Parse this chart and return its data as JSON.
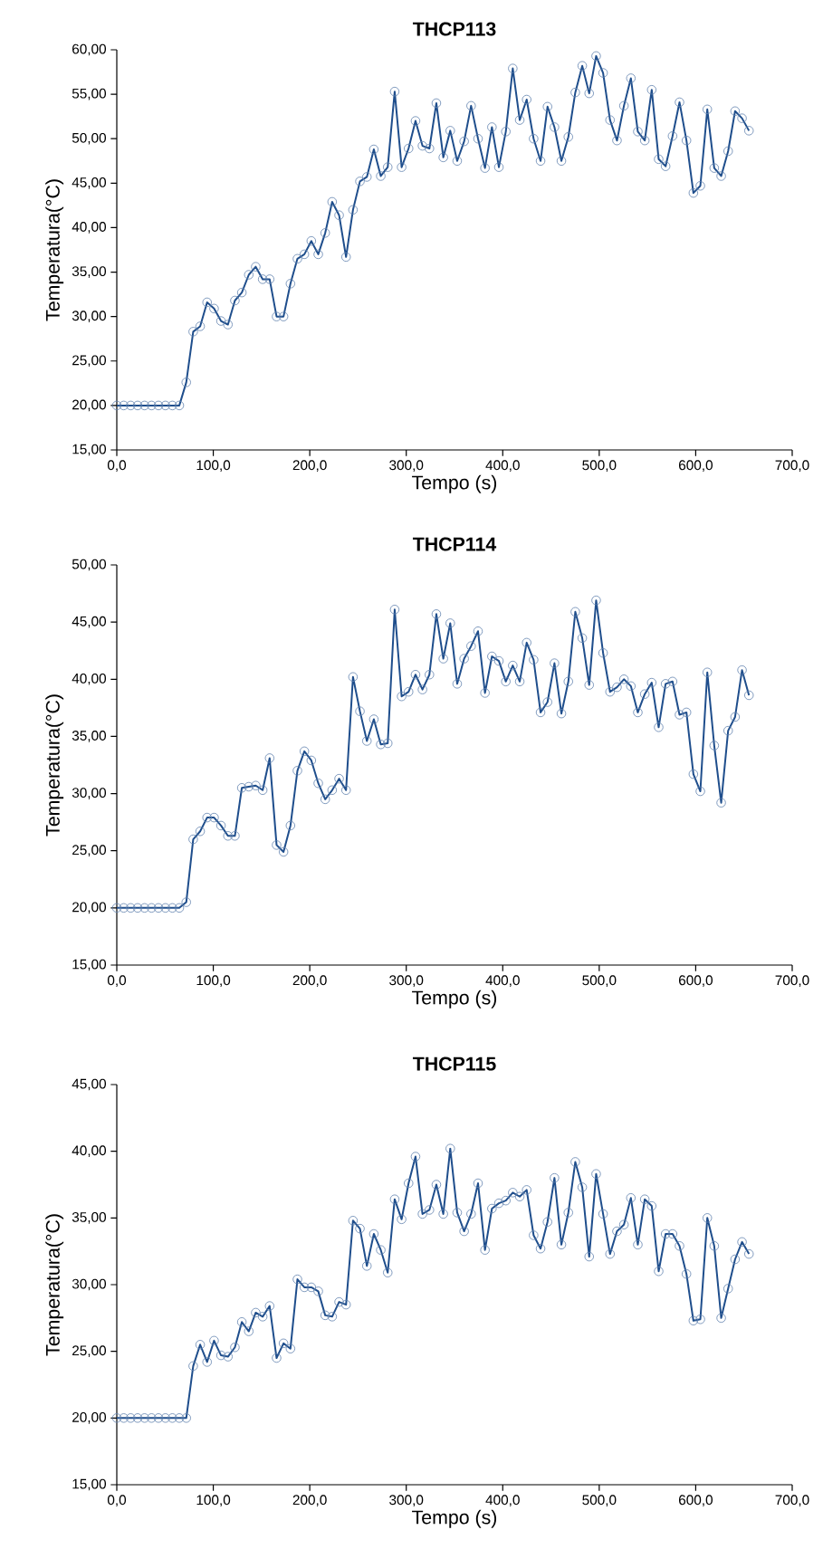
{
  "chart_data": [
    {
      "type": "line",
      "title": "THCP113",
      "xlabel": "Tempo (s)",
      "ylabel": "Temperatura(°C)",
      "grid": false,
      "marker": "circle",
      "line_style": "solid",
      "xlim": [
        0,
        700
      ],
      "ylim": [
        15,
        60
      ],
      "xticks": [
        {
          "value": 0,
          "label": "0,0"
        },
        {
          "value": 100,
          "label": "100,0"
        },
        {
          "value": 200,
          "label": "200,0"
        },
        {
          "value": 300,
          "label": "300,0"
        },
        {
          "value": 400,
          "label": "400,0"
        },
        {
          "value": 500,
          "label": "500,0"
        },
        {
          "value": 600,
          "label": "600,0"
        },
        {
          "value": 700,
          "label": "700,0"
        }
      ],
      "yticks": [
        {
          "value": 15,
          "label": "15,00"
        },
        {
          "value": 20,
          "label": "20,00"
        },
        {
          "value": 25,
          "label": "25,00"
        },
        {
          "value": 30,
          "label": "30,00"
        },
        {
          "value": 35,
          "label": "35,00"
        },
        {
          "value": 40,
          "label": "40,00"
        },
        {
          "value": 45,
          "label": "45,00"
        },
        {
          "value": 50,
          "label": "50,00"
        },
        {
          "value": 55,
          "label": "55,00"
        },
        {
          "value": 60,
          "label": "60,00"
        }
      ],
      "x": [
        0,
        7.2,
        14.4,
        21.6,
        28.8,
        36,
        43.2,
        50.4,
        57.6,
        64.8,
        72,
        79.2,
        86.4,
        93.6,
        100.8,
        108,
        115.2,
        122.4,
        129.6,
        136.8,
        144,
        151.2,
        158.4,
        165.6,
        172.8,
        180,
        187.2,
        194.4,
        201.6,
        208.8,
        216,
        223.2,
        230.4,
        237.6,
        244.8,
        252,
        259.2,
        266.4,
        273.6,
        280.8,
        288,
        295.2,
        302.4,
        309.6,
        316.8,
        324,
        331.2,
        338.4,
        345.6,
        352.8,
        360,
        367.2,
        374.4,
        381.6,
        388.8,
        396,
        403.2,
        410.4,
        417.6,
        424.8,
        432,
        439.2,
        446.4,
        453.6,
        460.8,
        468,
        475.2,
        482.4,
        489.6,
        496.8,
        504,
        511.2,
        518.4,
        525.6,
        532.8,
        540,
        547.2,
        554.4,
        561.6,
        568.8,
        576,
        583.2,
        590.4,
        597.6,
        604.8,
        612,
        619.2,
        626.4,
        633.6,
        640.8,
        648,
        655.2
      ],
      "series": [
        {
          "color": "#1f4e8c",
          "values": [
            20.0,
            20.0,
            20.0,
            20.0,
            20.0,
            20.0,
            20.0,
            20.0,
            20.0,
            20.0,
            22.6,
            28.3,
            28.9,
            31.6,
            30.9,
            29.5,
            29.1,
            31.8,
            32.7,
            34.7,
            35.6,
            34.2,
            34.2,
            30.0,
            30.0,
            33.7,
            36.5,
            37.0,
            38.5,
            37.0,
            39.4,
            42.9,
            41.4,
            36.7,
            42.0,
            45.2,
            45.7,
            48.8,
            45.8,
            46.8,
            55.3,
            46.8,
            48.9,
            52.0,
            49.2,
            48.9,
            54.0,
            47.9,
            50.9,
            47.5,
            49.7,
            53.7,
            50.0,
            46.7,
            51.3,
            46.8,
            50.8,
            57.9,
            52.1,
            54.4,
            50.0,
            47.5,
            53.6,
            51.3,
            47.5,
            50.2,
            55.2,
            58.2,
            55.1,
            59.3,
            57.4,
            52.1,
            49.8,
            53.7,
            56.8,
            50.8,
            49.8,
            55.5,
            47.7,
            46.9,
            50.3,
            54.1,
            49.8,
            43.9,
            44.7,
            53.3,
            46.7,
            45.8,
            48.6,
            53.1,
            52.3,
            50.9
          ]
        }
      ]
    },
    {
      "type": "line",
      "title": "THCP114",
      "xlabel": "Tempo (s)",
      "ylabel": "Temperatura(°C)",
      "grid": false,
      "marker": "circle",
      "line_style": "solid",
      "xlim": [
        0,
        700
      ],
      "ylim": [
        15,
        50
      ],
      "xticks": [
        {
          "value": 0,
          "label": "0,0"
        },
        {
          "value": 100,
          "label": "100,0"
        },
        {
          "value": 200,
          "label": "200,0"
        },
        {
          "value": 300,
          "label": "300,0"
        },
        {
          "value": 400,
          "label": "400,0"
        },
        {
          "value": 500,
          "label": "500,0"
        },
        {
          "value": 600,
          "label": "600,0"
        },
        {
          "value": 700,
          "label": "700,0"
        }
      ],
      "yticks": [
        {
          "value": 15,
          "label": "15,00"
        },
        {
          "value": 20,
          "label": "20,00"
        },
        {
          "value": 25,
          "label": "25,00"
        },
        {
          "value": 30,
          "label": "30,00"
        },
        {
          "value": 35,
          "label": "35,00"
        },
        {
          "value": 40,
          "label": "40,00"
        },
        {
          "value": 45,
          "label": "45,00"
        },
        {
          "value": 50,
          "label": "50,00"
        }
      ],
      "x": [
        0,
        7.2,
        14.4,
        21.6,
        28.8,
        36,
        43.2,
        50.4,
        57.6,
        64.8,
        72,
        79.2,
        86.4,
        93.6,
        100.8,
        108,
        115.2,
        122.4,
        129.6,
        136.8,
        144,
        151.2,
        158.4,
        165.6,
        172.8,
        180,
        187.2,
        194.4,
        201.6,
        208.8,
        216,
        223.2,
        230.4,
        237.6,
        244.8,
        252,
        259.2,
        266.4,
        273.6,
        280.8,
        288,
        295.2,
        302.4,
        309.6,
        316.8,
        324,
        331.2,
        338.4,
        345.6,
        352.8,
        360,
        367.2,
        374.4,
        381.6,
        388.8,
        396,
        403.2,
        410.4,
        417.6,
        424.8,
        432,
        439.2,
        446.4,
        453.6,
        460.8,
        468,
        475.2,
        482.4,
        489.6,
        496.8,
        504,
        511.2,
        518.4,
        525.6,
        532.8,
        540,
        547.2,
        554.4,
        561.6,
        568.8,
        576,
        583.2,
        590.4,
        597.6,
        604.8,
        612,
        619.2,
        626.4,
        633.6,
        640.8,
        648,
        655.2
      ],
      "series": [
        {
          "color": "#1f4e8c",
          "values": [
            20.0,
            20.0,
            20.0,
            20.0,
            20.0,
            20.0,
            20.0,
            20.0,
            20.0,
            20.0,
            20.5,
            26.0,
            26.7,
            27.9,
            27.9,
            27.2,
            26.3,
            26.3,
            30.5,
            30.6,
            30.7,
            30.3,
            33.1,
            25.5,
            24.9,
            27.2,
            32.0,
            33.7,
            32.9,
            30.9,
            29.5,
            30.3,
            31.3,
            30.3,
            40.2,
            37.2,
            34.6,
            36.5,
            34.3,
            34.4,
            46.1,
            38.5,
            38.9,
            40.4,
            39.1,
            40.4,
            45.7,
            41.8,
            44.9,
            39.6,
            41.8,
            42.9,
            44.2,
            38.8,
            42.0,
            41.6,
            39.8,
            41.2,
            39.8,
            43.2,
            41.7,
            37.1,
            38.0,
            41.4,
            37.0,
            39.8,
            45.9,
            43.6,
            39.5,
            46.9,
            42.3,
            38.9,
            39.3,
            40.0,
            39.4,
            37.1,
            38.7,
            39.7,
            35.8,
            39.6,
            39.8,
            36.9,
            37.1,
            31.7,
            30.2,
            40.6,
            34.2,
            29.2,
            35.5,
            36.7,
            40.8,
            38.6
          ]
        }
      ]
    },
    {
      "type": "line",
      "title": "THCP115",
      "xlabel": "Tempo (s)",
      "ylabel": "Temperatura(°C)",
      "grid": false,
      "marker": "circle",
      "line_style": "solid",
      "xlim": [
        0,
        700
      ],
      "ylim": [
        15,
        45
      ],
      "xticks": [
        {
          "value": 0,
          "label": "0,0"
        },
        {
          "value": 100,
          "label": "100,0"
        },
        {
          "value": 200,
          "label": "200,0"
        },
        {
          "value": 300,
          "label": "300,0"
        },
        {
          "value": 400,
          "label": "400,0"
        },
        {
          "value": 500,
          "label": "500,0"
        },
        {
          "value": 600,
          "label": "600,0"
        },
        {
          "value": 700,
          "label": "700,0"
        }
      ],
      "yticks": [
        {
          "value": 15,
          "label": "15,00"
        },
        {
          "value": 20,
          "label": "20,00"
        },
        {
          "value": 25,
          "label": "25,00"
        },
        {
          "value": 30,
          "label": "30,00"
        },
        {
          "value": 35,
          "label": "35,00"
        },
        {
          "value": 40,
          "label": "40,00"
        },
        {
          "value": 45,
          "label": "45,00"
        }
      ],
      "x": [
        0,
        7.2,
        14.4,
        21.6,
        28.8,
        36,
        43.2,
        50.4,
        57.6,
        64.8,
        72,
        79.2,
        86.4,
        93.6,
        100.8,
        108,
        115.2,
        122.4,
        129.6,
        136.8,
        144,
        151.2,
        158.4,
        165.6,
        172.8,
        180,
        187.2,
        194.4,
        201.6,
        208.8,
        216,
        223.2,
        230.4,
        237.6,
        244.8,
        252,
        259.2,
        266.4,
        273.6,
        280.8,
        288,
        295.2,
        302.4,
        309.6,
        316.8,
        324,
        331.2,
        338.4,
        345.6,
        352.8,
        360,
        367.2,
        374.4,
        381.6,
        388.8,
        396,
        403.2,
        410.4,
        417.6,
        424.8,
        432,
        439.2,
        446.4,
        453.6,
        460.8,
        468,
        475.2,
        482.4,
        489.6,
        496.8,
        504,
        511.2,
        518.4,
        525.6,
        532.8,
        540,
        547.2,
        554.4,
        561.6,
        568.8,
        576,
        583.2,
        590.4,
        597.6,
        604.8,
        612,
        619.2,
        626.4,
        633.6,
        640.8,
        648,
        655.2
      ],
      "series": [
        {
          "color": "#1f4e8c",
          "values": [
            20.0,
            20.0,
            20.0,
            20.0,
            20.0,
            20.0,
            20.0,
            20.0,
            20.0,
            20.0,
            20.0,
            23.9,
            25.5,
            24.2,
            25.8,
            24.7,
            24.6,
            25.3,
            27.2,
            26.5,
            27.9,
            27.6,
            28.4,
            24.5,
            25.6,
            25.2,
            30.4,
            29.8,
            29.8,
            29.5,
            27.7,
            27.6,
            28.7,
            28.5,
            34.8,
            34.2,
            31.4,
            33.8,
            32.6,
            30.9,
            36.4,
            34.9,
            37.6,
            39.6,
            35.3,
            35.6,
            37.5,
            35.3,
            40.2,
            35.4,
            34.0,
            35.3,
            37.6,
            32.6,
            35.7,
            36.1,
            36.3,
            36.9,
            36.6,
            37.1,
            33.7,
            32.7,
            34.7,
            38.0,
            33.0,
            35.4,
            39.2,
            37.3,
            32.1,
            38.3,
            35.3,
            32.3,
            34.0,
            34.5,
            36.5,
            33.0,
            36.4,
            35.9,
            31.0,
            33.8,
            33.8,
            32.9,
            30.8,
            27.3,
            27.4,
            35.0,
            32.9,
            27.5,
            29.7,
            31.9,
            33.2,
            32.3
          ]
        }
      ]
    }
  ]
}
